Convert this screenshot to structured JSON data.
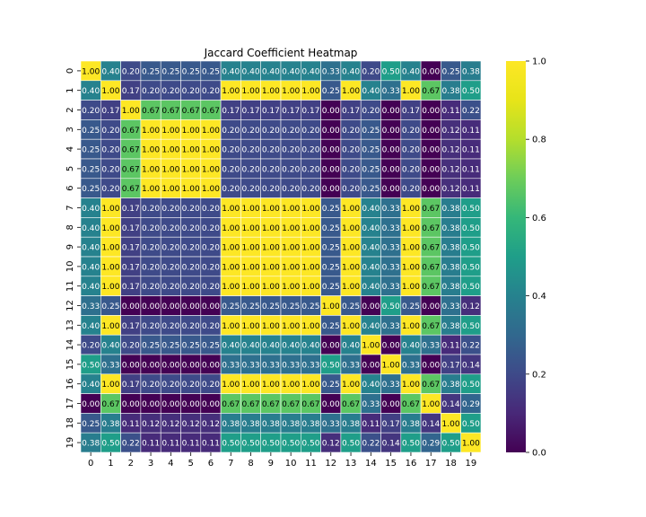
{
  "chart_data": {
    "type": "heatmap",
    "title": "Jaccard Coefficient Heatmap",
    "xlabel": "",
    "ylabel": "",
    "x_categories": [
      "0",
      "1",
      "2",
      "3",
      "4",
      "5",
      "6",
      "7",
      "8",
      "9",
      "10",
      "11",
      "12",
      "13",
      "14",
      "15",
      "16",
      "17",
      "18",
      "19"
    ],
    "y_categories": [
      "0",
      "1",
      "2",
      "3",
      "4",
      "5",
      "6",
      "7",
      "8",
      "9",
      "10",
      "11",
      "12",
      "13",
      "14",
      "15",
      "16",
      "17",
      "18",
      "19"
    ],
    "colormap": "viridis",
    "colorbar": {
      "min": 0.0,
      "max": 1.0,
      "ticks": [
        "0.0",
        "0.2",
        "0.4",
        "0.6",
        "0.8",
        "1.0"
      ]
    },
    "grid_lines": "white",
    "annotation_format": "2 decimals",
    "values": [
      [
        1.0,
        0.4,
        0.2,
        0.25,
        0.25,
        0.25,
        0.25,
        0.4,
        0.4,
        0.4,
        0.4,
        0.4,
        0.33,
        0.4,
        0.2,
        0.5,
        0.4,
        0.0,
        0.25,
        0.38
      ],
      [
        0.4,
        1.0,
        0.17,
        0.2,
        0.2,
        0.2,
        0.2,
        1.0,
        1.0,
        1.0,
        1.0,
        1.0,
        0.25,
        1.0,
        0.4,
        0.33,
        1.0,
        0.67,
        0.38,
        0.5
      ],
      [
        0.2,
        0.17,
        1.0,
        0.67,
        0.67,
        0.67,
        0.67,
        0.17,
        0.17,
        0.17,
        0.17,
        0.17,
        0.0,
        0.17,
        0.2,
        0.0,
        0.17,
        0.0,
        0.11,
        0.22
      ],
      [
        0.25,
        0.2,
        0.67,
        1.0,
        1.0,
        1.0,
        1.0,
        0.2,
        0.2,
        0.2,
        0.2,
        0.2,
        0.0,
        0.2,
        0.25,
        0.0,
        0.2,
        0.0,
        0.12,
        0.11
      ],
      [
        0.25,
        0.2,
        0.67,
        1.0,
        1.0,
        1.0,
        1.0,
        0.2,
        0.2,
        0.2,
        0.2,
        0.2,
        0.0,
        0.2,
        0.25,
        0.0,
        0.2,
        0.0,
        0.12,
        0.11
      ],
      [
        0.25,
        0.2,
        0.67,
        1.0,
        1.0,
        1.0,
        1.0,
        0.2,
        0.2,
        0.2,
        0.2,
        0.2,
        0.0,
        0.2,
        0.25,
        0.0,
        0.2,
        0.0,
        0.12,
        0.11
      ],
      [
        0.25,
        0.2,
        0.67,
        1.0,
        1.0,
        1.0,
        1.0,
        0.2,
        0.2,
        0.2,
        0.2,
        0.2,
        0.0,
        0.2,
        0.25,
        0.0,
        0.2,
        0.0,
        0.12,
        0.11
      ],
      [
        0.4,
        1.0,
        0.17,
        0.2,
        0.2,
        0.2,
        0.2,
        1.0,
        1.0,
        1.0,
        1.0,
        1.0,
        0.25,
        1.0,
        0.4,
        0.33,
        1.0,
        0.67,
        0.38,
        0.5
      ],
      [
        0.4,
        1.0,
        0.17,
        0.2,
        0.2,
        0.2,
        0.2,
        1.0,
        1.0,
        1.0,
        1.0,
        1.0,
        0.25,
        1.0,
        0.4,
        0.33,
        1.0,
        0.67,
        0.38,
        0.5
      ],
      [
        0.4,
        1.0,
        0.17,
        0.2,
        0.2,
        0.2,
        0.2,
        1.0,
        1.0,
        1.0,
        1.0,
        1.0,
        0.25,
        1.0,
        0.4,
        0.33,
        1.0,
        0.67,
        0.38,
        0.5
      ],
      [
        0.4,
        1.0,
        0.17,
        0.2,
        0.2,
        0.2,
        0.2,
        1.0,
        1.0,
        1.0,
        1.0,
        1.0,
        0.25,
        1.0,
        0.4,
        0.33,
        1.0,
        0.67,
        0.38,
        0.5
      ],
      [
        0.4,
        1.0,
        0.17,
        0.2,
        0.2,
        0.2,
        0.2,
        1.0,
        1.0,
        1.0,
        1.0,
        1.0,
        0.25,
        1.0,
        0.4,
        0.33,
        1.0,
        0.67,
        0.38,
        0.5
      ],
      [
        0.33,
        0.25,
        0.0,
        0.0,
        0.0,
        0.0,
        0.0,
        0.25,
        0.25,
        0.25,
        0.25,
        0.25,
        1.0,
        0.25,
        0.0,
        0.5,
        0.25,
        0.0,
        0.33,
        0.12
      ],
      [
        0.4,
        1.0,
        0.17,
        0.2,
        0.2,
        0.2,
        0.2,
        1.0,
        1.0,
        1.0,
        1.0,
        1.0,
        0.25,
        1.0,
        0.4,
        0.33,
        1.0,
        0.67,
        0.38,
        0.5
      ],
      [
        0.2,
        0.4,
        0.2,
        0.25,
        0.25,
        0.25,
        0.25,
        0.4,
        0.4,
        0.4,
        0.4,
        0.4,
        0.0,
        0.4,
        1.0,
        0.0,
        0.4,
        0.33,
        0.11,
        0.22
      ],
      [
        0.5,
        0.33,
        0.0,
        0.0,
        0.0,
        0.0,
        0.0,
        0.33,
        0.33,
        0.33,
        0.33,
        0.33,
        0.5,
        0.33,
        0.0,
        1.0,
        0.33,
        0.0,
        0.17,
        0.14
      ],
      [
        0.4,
        1.0,
        0.17,
        0.2,
        0.2,
        0.2,
        0.2,
        1.0,
        1.0,
        1.0,
        1.0,
        1.0,
        0.25,
        1.0,
        0.4,
        0.33,
        1.0,
        0.67,
        0.38,
        0.5
      ],
      [
        0.0,
        0.67,
        0.0,
        0.0,
        0.0,
        0.0,
        0.0,
        0.67,
        0.67,
        0.67,
        0.67,
        0.67,
        0.0,
        0.67,
        0.33,
        0.0,
        0.67,
        1.0,
        0.14,
        0.29
      ],
      [
        0.25,
        0.38,
        0.11,
        0.12,
        0.12,
        0.12,
        0.12,
        0.38,
        0.38,
        0.38,
        0.38,
        0.38,
        0.33,
        0.38,
        0.11,
        0.17,
        0.38,
        0.14,
        1.0,
        0.5
      ],
      [
        0.38,
        0.5,
        0.22,
        0.11,
        0.11,
        0.11,
        0.11,
        0.5,
        0.5,
        0.5,
        0.5,
        0.5,
        0.12,
        0.5,
        0.22,
        0.14,
        0.5,
        0.29,
        0.5,
        1.0
      ]
    ]
  }
}
